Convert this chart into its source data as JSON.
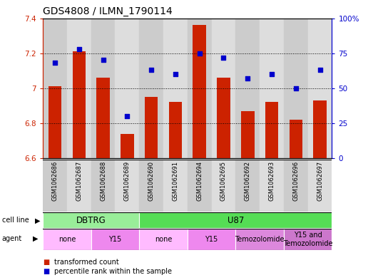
{
  "title": "GDS4808 / ILMN_1790114",
  "samples": [
    "GSM1062686",
    "GSM1062687",
    "GSM1062688",
    "GSM1062689",
    "GSM1062690",
    "GSM1062691",
    "GSM1062694",
    "GSM1062695",
    "GSM1062692",
    "GSM1062693",
    "GSM1062696",
    "GSM1062697"
  ],
  "transformed_count": [
    7.01,
    7.21,
    7.06,
    6.74,
    6.95,
    6.92,
    7.36,
    7.06,
    6.87,
    6.92,
    6.82,
    6.93
  ],
  "percentile_rank": [
    68,
    78,
    70,
    30,
    63,
    60,
    75,
    72,
    57,
    60,
    50,
    63
  ],
  "ylim_left": [
    6.6,
    7.4
  ],
  "ylim_right": [
    0,
    100
  ],
  "bar_color": "#cc2200",
  "dot_color": "#0000cc",
  "axis_color_left": "#cc2200",
  "axis_color_right": "#0000cc",
  "cell_line_groups": [
    {
      "label": "DBTRG",
      "start": 0,
      "end": 3,
      "color": "#99ee99"
    },
    {
      "label": "U87",
      "start": 4,
      "end": 11,
      "color": "#55dd55"
    }
  ],
  "agent_groups": [
    {
      "label": "none",
      "start": 0,
      "end": 1,
      "color": "#ffbbff"
    },
    {
      "label": "Y15",
      "start": 2,
      "end": 3,
      "color": "#ee88ee"
    },
    {
      "label": "none",
      "start": 4,
      "end": 5,
      "color": "#ffbbff"
    },
    {
      "label": "Y15",
      "start": 6,
      "end": 7,
      "color": "#ee88ee"
    },
    {
      "label": "Temozolomide",
      "start": 8,
      "end": 9,
      "color": "#dd88dd"
    },
    {
      "label": "Y15 and\nTemozolomide",
      "start": 10,
      "end": 11,
      "color": "#cc77cc"
    }
  ],
  "col_bg_even": "#cccccc",
  "col_bg_odd": "#dddddd",
  "legend_items": [
    {
      "label": "transformed count",
      "color": "#cc2200"
    },
    {
      "label": "percentile rank within the sample",
      "color": "#0000cc"
    }
  ]
}
